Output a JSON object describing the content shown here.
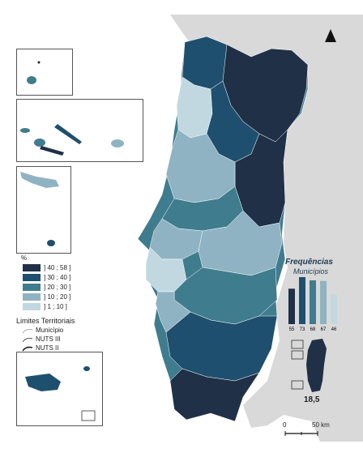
{
  "legend": {
    "unit": "%",
    "classes": [
      {
        "label": "] 40 ; 58 ]",
        "color": "#1f3047"
      },
      {
        "label": "] 30 ; 40 ]",
        "color": "#1f4f6e"
      },
      {
        "label": "] 20 ; 30 ]",
        "color": "#3f7c8e"
      },
      {
        "label": "] 10 ; 20 ]",
        "color": "#8fb3c2"
      },
      {
        "label": "] 1 ; 10 ]",
        "color": "#c2d8e1"
      }
    ]
  },
  "limits": {
    "title": "Limites Territoriais",
    "items": [
      "Município",
      "NUTS III",
      "NUTS II"
    ]
  },
  "frequencies": {
    "title": "Frequências",
    "subtitle": "Municípios",
    "bars": [
      {
        "value": 55,
        "color": "#1f3047"
      },
      {
        "value": 73,
        "color": "#1f4f6e"
      },
      {
        "value": 68,
        "color": "#3f7c8e"
      },
      {
        "value": 67,
        "color": "#8fb3c2"
      },
      {
        "value": 46,
        "color": "#c2d8e1"
      }
    ],
    "national_value": "18,5"
  },
  "scale": {
    "zero": "0",
    "end": "50 km"
  },
  "north_arrow": "north-arrow-icon"
}
